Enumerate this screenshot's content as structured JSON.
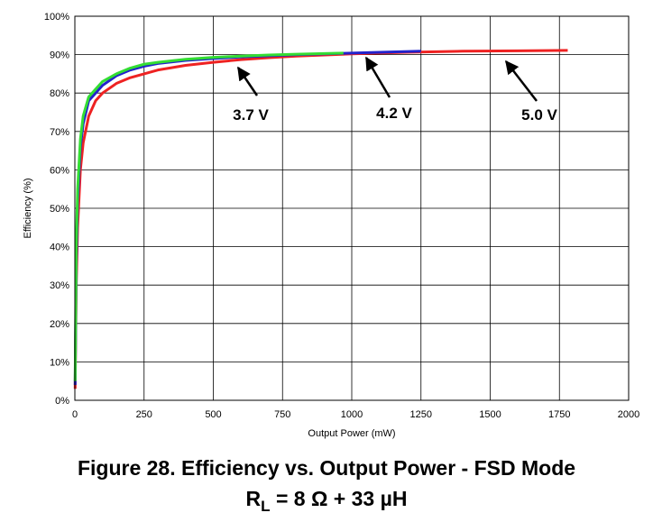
{
  "chart_data": {
    "type": "line",
    "title": "Figure 28.  Efficiency vs. Output Power - FSD Mode",
    "subtitle": [
      "R",
      "L",
      " = 8 Ω + 33 µH"
    ],
    "x_label": "Output Power (mW)",
    "y_label": "Efficiency (%)",
    "xlim": [
      0,
      2000
    ],
    "ylim": [
      0,
      100
    ],
    "xticks": [
      0,
      250,
      500,
      750,
      1000,
      1250,
      1500,
      1750,
      2000
    ],
    "yticks": [
      {
        "value": 0,
        "label": "0%"
      },
      {
        "value": 10,
        "label": "10%"
      },
      {
        "value": 20,
        "label": "20%"
      },
      {
        "value": 30,
        "label": "30%"
      },
      {
        "value": 40,
        "label": "40%"
      },
      {
        "value": 50,
        "label": "50%"
      },
      {
        "value": 60,
        "label": "60%"
      },
      {
        "value": 70,
        "label": "70%"
      },
      {
        "value": 80,
        "label": "80%"
      },
      {
        "value": 90,
        "label": "90%"
      },
      {
        "value": 100,
        "label": "100%"
      }
    ],
    "grid": true,
    "annotations": [
      "3.7 V",
      "4.2 V",
      "5.0 V"
    ],
    "series": [
      {
        "color": "#ee2222",
        "x": [
          1,
          5,
          10,
          20,
          30,
          50,
          75,
          100,
          150,
          200,
          250,
          300,
          400,
          500,
          600,
          700,
          800,
          1000,
          1200,
          1400,
          1600,
          1780
        ],
        "values": [
          3,
          30,
          45,
          60,
          67,
          74,
          78,
          80,
          82.5,
          84,
          85,
          86,
          87.2,
          88,
          88.7,
          89.2,
          89.6,
          90.2,
          90.6,
          90.9,
          91,
          91.1
        ]
      },
      {
        "color": "#2222cc",
        "x": [
          1,
          5,
          10,
          20,
          30,
          50,
          75,
          100,
          150,
          200,
          250,
          300,
          400,
          500,
          600,
          700,
          800,
          1000,
          1100,
          1250
        ],
        "values": [
          4,
          35,
          52,
          66,
          72,
          78,
          80,
          82,
          84.5,
          86,
          87,
          87.7,
          88.5,
          89,
          89.4,
          89.7,
          90,
          90.4,
          90.6,
          90.9
        ]
      },
      {
        "color": "#33dd33",
        "x": [
          1,
          5,
          10,
          20,
          30,
          50,
          75,
          100,
          150,
          200,
          250,
          300,
          400,
          500,
          600,
          700,
          800,
          900,
          970
        ],
        "values": [
          5,
          40,
          55,
          68,
          74,
          79,
          81,
          83,
          85,
          86.5,
          87.5,
          88,
          88.8,
          89.3,
          89.6,
          89.9,
          90.1,
          90.3,
          90.4
        ]
      }
    ]
  }
}
